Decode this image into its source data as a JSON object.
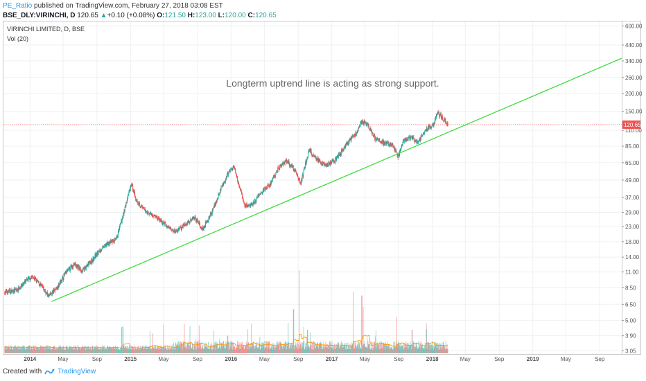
{
  "header": {
    "author": "PE_Ratio",
    "published": " published on TradingView.com, February 27, 2018 03:08 EST"
  },
  "ticker": {
    "symbol": "BSE_DLY:VIRINCHI, D",
    "price": "120.65",
    "change_arrow": "▲",
    "change": "+0.10 (+0.08%)",
    "open_label": "O:",
    "open": "121.50",
    "high_label": "H:",
    "high": "123.00",
    "low_label": "L:",
    "low": "120.00",
    "close_label": "C:",
    "close": "120.65"
  },
  "footer": {
    "created_with": "Created with",
    "brand": "TradingView"
  },
  "chart_data": {
    "type": "candlestick",
    "title": "VIRINCHI LIMITED, D, BSE",
    "indicator": "Vol (20)",
    "annotation": "Longterm uptrend line is acting as strong support.",
    "y_scale": "log",
    "y_ticks": [
      3.05,
      3.9,
      5.0,
      6.5,
      8.5,
      11.0,
      14.0,
      18.0,
      23.0,
      29.0,
      37.0,
      49.0,
      65.0,
      85.0,
      110.0,
      150.0,
      200.0,
      260.0,
      340.0,
      440.0,
      600.0
    ],
    "x_ticks": [
      {
        "label": "2014",
        "date": "2014-01-01",
        "bold": true
      },
      {
        "label": "May",
        "date": "2014-05-01"
      },
      {
        "label": "Sep",
        "date": "2014-09-01"
      },
      {
        "label": "2015",
        "date": "2015-01-01",
        "bold": true
      },
      {
        "label": "May",
        "date": "2015-05-01"
      },
      {
        "label": "Sep",
        "date": "2015-09-01"
      },
      {
        "label": "2016",
        "date": "2016-01-01",
        "bold": true
      },
      {
        "label": "May",
        "date": "2016-05-01"
      },
      {
        "label": "Sep",
        "date": "2016-09-01"
      },
      {
        "label": "2017",
        "date": "2017-01-01",
        "bold": true
      },
      {
        "label": "May",
        "date": "2017-05-01"
      },
      {
        "label": "Sep",
        "date": "2017-09-01"
      },
      {
        "label": "2018",
        "date": "2018-01-01",
        "bold": true
      },
      {
        "label": "May",
        "date": "2018-05-01"
      },
      {
        "label": "Sep",
        "date": "2018-09-01"
      },
      {
        "label": "2019",
        "date": "2019-01-01",
        "bold": true
      },
      {
        "label": "May",
        "date": "2019-05-01"
      },
      {
        "label": "Sep",
        "date": "2019-09-01"
      }
    ],
    "x_range": [
      "2013-09-24",
      "2019-11-20"
    ],
    "last_price": 120.65,
    "price_path": [
      [
        "2013-10-01",
        7.9
      ],
      [
        "2013-11-15",
        8.2
      ],
      [
        "2013-12-20",
        9.6
      ],
      [
        "2014-01-10",
        10.2
      ],
      [
        "2014-02-10",
        8.8
      ],
      [
        "2014-03-10",
        7.4
      ],
      [
        "2014-04-10",
        8.6
      ],
      [
        "2014-05-10",
        10.8
      ],
      [
        "2014-06-10",
        12.5
      ],
      [
        "2014-07-10",
        11.2
      ],
      [
        "2014-08-10",
        13.0
      ],
      [
        "2014-09-10",
        15.5
      ],
      [
        "2014-10-10",
        17.5
      ],
      [
        "2014-11-10",
        18.5
      ],
      [
        "2014-12-01",
        26.0
      ],
      [
        "2014-12-20",
        36.0
      ],
      [
        "2015-01-05",
        46.0
      ],
      [
        "2015-01-20",
        36.0
      ],
      [
        "2015-02-20",
        30.0
      ],
      [
        "2015-04-01",
        27.0
      ],
      [
        "2015-05-15",
        23.0
      ],
      [
        "2015-06-15",
        21.0
      ],
      [
        "2015-07-20",
        24.0
      ],
      [
        "2015-08-20",
        27.0
      ],
      [
        "2015-09-20",
        22.0
      ],
      [
        "2015-10-20",
        28.0
      ],
      [
        "2015-11-20",
        40.0
      ],
      [
        "2015-12-20",
        54.0
      ],
      [
        "2016-01-10",
        61.0
      ],
      [
        "2016-01-30",
        45.0
      ],
      [
        "2016-02-20",
        32.0
      ],
      [
        "2016-03-20",
        33.0
      ],
      [
        "2016-04-20",
        40.0
      ],
      [
        "2016-05-20",
        45.0
      ],
      [
        "2016-06-20",
        59.0
      ],
      [
        "2016-07-20",
        67.0
      ],
      [
        "2016-08-20",
        58.0
      ],
      [
        "2016-09-10",
        46.0
      ],
      [
        "2016-10-10",
        80.0
      ],
      [
        "2016-11-10",
        68.0
      ],
      [
        "2016-12-10",
        62.0
      ],
      [
        "2017-01-10",
        67.0
      ],
      [
        "2017-02-10",
        80.0
      ],
      [
        "2017-03-10",
        95.0
      ],
      [
        "2017-04-01",
        105.0
      ],
      [
        "2017-04-20",
        128.0
      ],
      [
        "2017-05-15",
        118.0
      ],
      [
        "2017-06-10",
        95.0
      ],
      [
        "2017-07-10",
        90.0
      ],
      [
        "2017-08-10",
        87.0
      ],
      [
        "2017-08-30",
        71.0
      ],
      [
        "2017-09-20",
        95.0
      ],
      [
        "2017-10-20",
        98.0
      ],
      [
        "2017-11-10",
        90.0
      ],
      [
        "2017-12-10",
        112.0
      ],
      [
        "2018-01-05",
        120.0
      ],
      [
        "2018-01-20",
        148.0
      ],
      [
        "2018-02-05",
        135.0
      ],
      [
        "2018-02-27",
        120.65
      ]
    ],
    "volume_spikes": [
      [
        "2014-12-01",
        4.5
      ],
      [
        "2015-12-20",
        3.9
      ],
      [
        "2016-08-15",
        6.0
      ],
      [
        "2016-09-05",
        11.3
      ],
      [
        "2016-10-05",
        4.3
      ],
      [
        "2017-03-20",
        8.0
      ],
      [
        "2017-04-20",
        7.5
      ],
      [
        "2017-04-25",
        6.2
      ],
      [
        "2017-08-25",
        5.3
      ],
      [
        "2017-10-20",
        4.3
      ],
      [
        "2017-12-10",
        4.8
      ]
    ],
    "trendline": {
      "start": [
        "2014-03-20",
        6.8
      ],
      "end": [
        "2019-11-20",
        355
      ]
    }
  }
}
